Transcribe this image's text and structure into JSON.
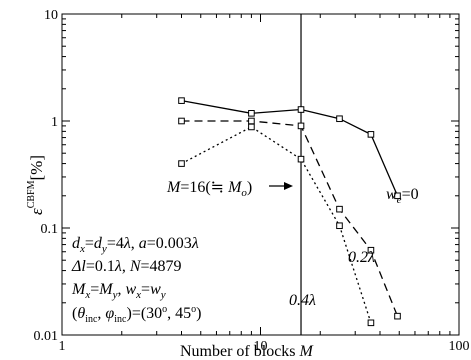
{
  "chart_data": {
    "type": "line",
    "xscale": "log",
    "yscale": "log",
    "xlim": [
      1,
      100
    ],
    "ylim": [
      0.01,
      10
    ],
    "xticks": [
      {
        "value": 1,
        "label": "1"
      },
      {
        "value": 10,
        "label": "10"
      },
      {
        "value": 100,
        "label": "100"
      }
    ],
    "yticks": [
      {
        "value": 0.01,
        "label": "0.01"
      },
      {
        "value": 0.1,
        "label": "0.1"
      },
      {
        "value": 1,
        "label": "1"
      },
      {
        "value": 10,
        "label": "10"
      }
    ],
    "xlabel": "Number of blocks M",
    "ylabel": "εCBFM[%]",
    "grid": false,
    "colors": {
      "line": "#000000",
      "marker_fill": "#ffffff"
    },
    "series": [
      {
        "name": "we=0",
        "style": "solid",
        "marker": "square",
        "x": [
          4,
          9,
          16,
          25,
          36,
          49
        ],
        "y": [
          1.55,
          1.18,
          1.28,
          1.05,
          0.75,
          0.2
        ]
      },
      {
        "name": "0.2λ",
        "style": "dashed",
        "marker": "square",
        "x": [
          4,
          9,
          16,
          25,
          36,
          49
        ],
        "y": [
          1.0,
          1.0,
          0.9,
          0.15,
          0.062,
          0.015
        ]
      },
      {
        "name": "0.4λ",
        "style": "dotted",
        "marker": "square",
        "x": [
          4,
          9,
          16,
          25,
          36
        ],
        "y": [
          0.4,
          0.88,
          0.44,
          0.105,
          0.013
        ]
      }
    ],
    "vline": {
      "x": 16,
      "label": "M=16(≒ Mo)"
    },
    "annotations": {
      "params": [
        "dx=dy=4λ, a=0.003λ",
        "Δl=0.1λ, N=4879",
        "Mx=My, wx=wy",
        "(θinc, φinc)=(30°, 45°)"
      ]
    }
  }
}
